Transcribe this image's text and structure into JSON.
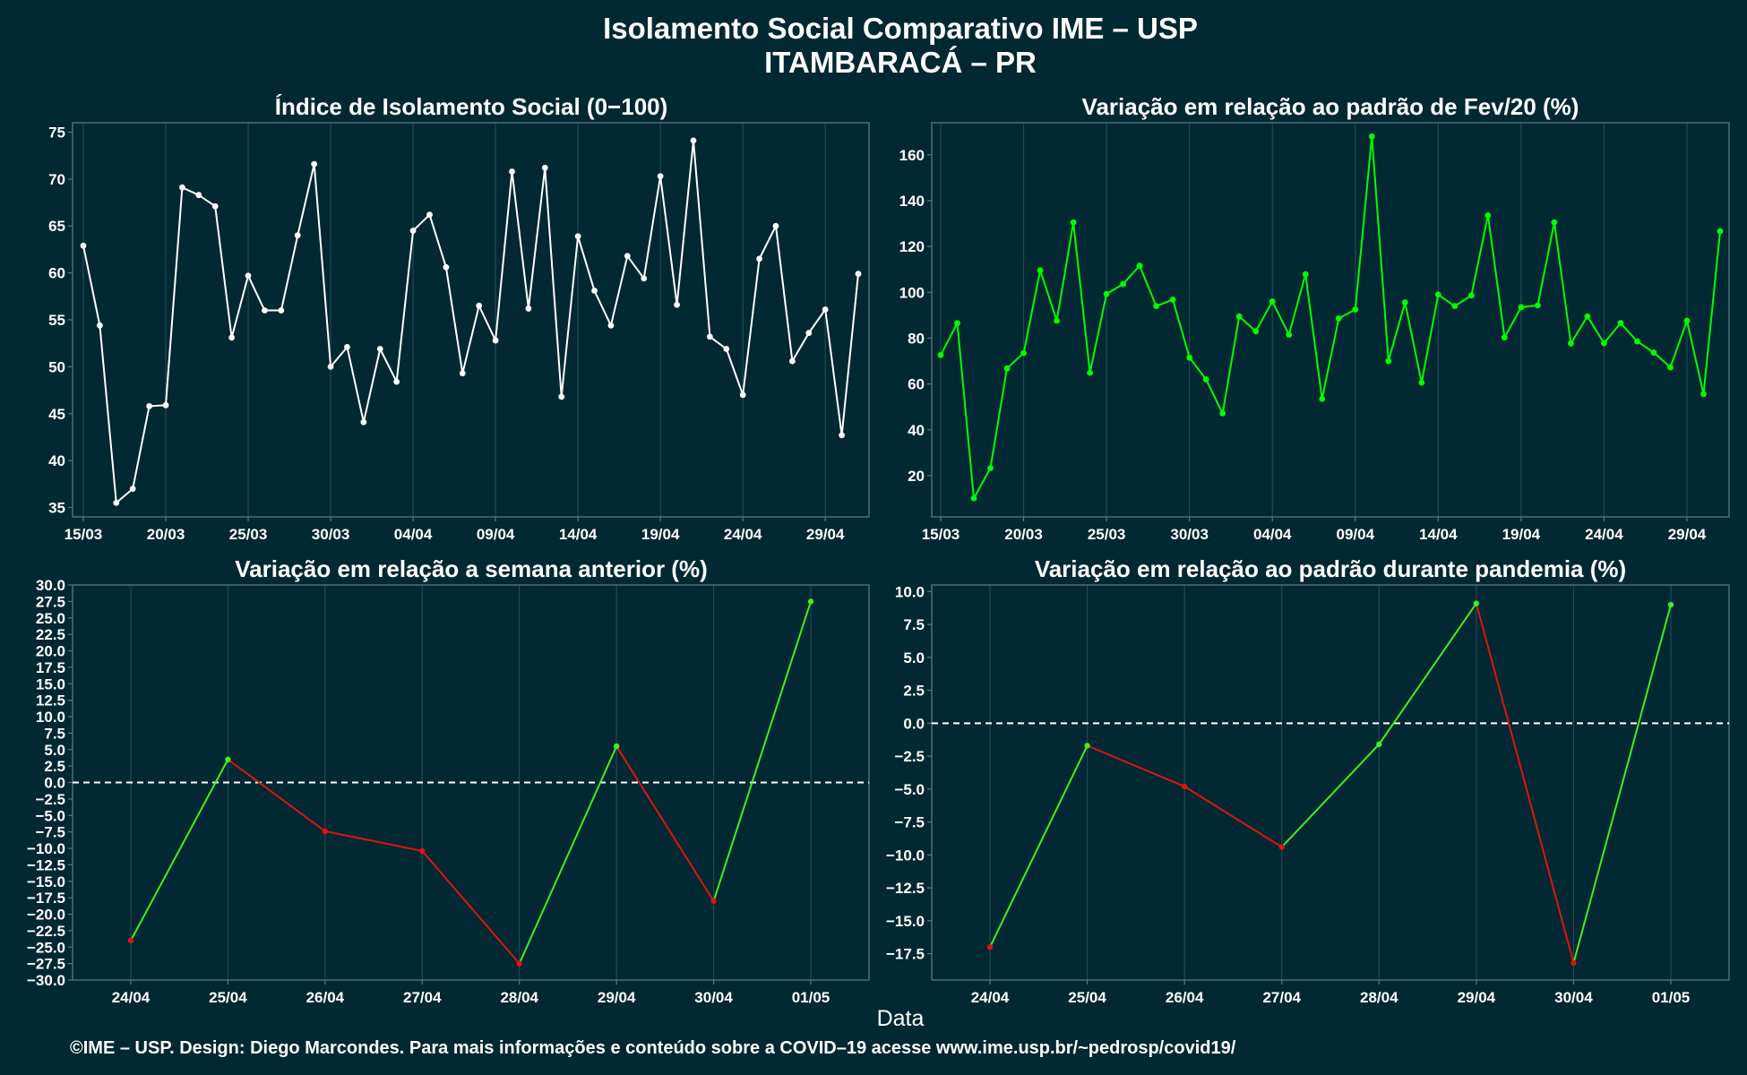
{
  "header": {
    "title_line1": "Isolamento Social Comparativo IME – USP",
    "title_line2": "ITAMBARACÁ – PR"
  },
  "xaxis_label": "Data",
  "caption": "©IME – USP. Design: Diego Marcondes. Para mais informações e conteúdo sobre a COVID–19 acesse www.ime.usp.br/~pedrosp/covid19/",
  "colors": {
    "background": "#022833",
    "panel_border": "#5a7880",
    "grid": "#1f4a52",
    "index_line": "#ffffff",
    "fev_line": "#00ff00",
    "positive": "#3ef01f",
    "negative": "#e0140f",
    "zero_line": "#ffffff"
  },
  "chart_data": [
    {
      "id": "indice",
      "type": "line",
      "title": "Índice de Isolamento Social (0−100)",
      "x_dates": [
        "15/03",
        "16/03",
        "17/03",
        "18/03",
        "19/03",
        "20/03",
        "21/03",
        "22/03",
        "23/03",
        "24/03",
        "25/03",
        "26/03",
        "27/03",
        "28/03",
        "29/03",
        "30/03",
        "31/03",
        "01/04",
        "02/04",
        "03/04",
        "04/04",
        "05/04",
        "06/04",
        "07/04",
        "08/04",
        "09/04",
        "10/04",
        "11/04",
        "12/04",
        "13/04",
        "14/04",
        "15/04",
        "16/04",
        "17/04",
        "18/04",
        "19/04",
        "20/04",
        "21/04",
        "22/04",
        "23/04",
        "24/04",
        "25/04",
        "26/04",
        "27/04",
        "28/04",
        "29/04",
        "30/04",
        "01/05"
      ],
      "values": [
        62.9,
        54.4,
        35.5,
        37.0,
        45.8,
        45.9,
        69.1,
        68.3,
        67.1,
        53.1,
        59.7,
        56.0,
        56.0,
        64.0,
        71.6,
        50.0,
        52.1,
        44.1,
        51.9,
        48.4,
        64.5,
        66.2,
        60.6,
        49.3,
        56.5,
        52.8,
        70.8,
        56.2,
        71.2,
        46.8,
        63.9,
        58.1,
        54.4,
        61.8,
        59.4,
        70.3,
        56.6,
        74.1,
        53.2,
        51.9,
        47.0,
        61.5,
        65.0,
        50.6,
        53.6,
        56.1,
        42.7,
        59.9
      ],
      "line_color": "#ffffff",
      "ylim": [
        34,
        76
      ],
      "yticks": [
        35,
        40,
        45,
        50,
        55,
        60,
        65,
        70,
        75
      ],
      "ytick_labels": [
        "35",
        "40",
        "45",
        "50",
        "55",
        "60",
        "65",
        "70",
        "75"
      ],
      "xtick_labels": [
        "15/03",
        "20/03",
        "25/03",
        "30/03",
        "04/04",
        "09/04",
        "14/04",
        "19/04",
        "24/04",
        "29/04"
      ],
      "xtick_positions": [
        0,
        5,
        10,
        15,
        20,
        25,
        30,
        35,
        40,
        45
      ]
    },
    {
      "id": "fev",
      "type": "line",
      "title": "Variação em relação ao padrão de Fev/20 (%)",
      "x_dates": [
        "15/03",
        "16/03",
        "17/03",
        "18/03",
        "19/03",
        "20/03",
        "21/03",
        "22/03",
        "23/03",
        "24/03",
        "25/03",
        "26/03",
        "27/03",
        "28/03",
        "29/03",
        "30/03",
        "31/03",
        "01/04",
        "02/04",
        "03/04",
        "04/04",
        "05/04",
        "06/04",
        "07/04",
        "08/04",
        "09/04",
        "10/04",
        "11/04",
        "12/04",
        "13/04",
        "14/04",
        "15/04",
        "16/04",
        "17/04",
        "18/04",
        "19/04",
        "20/04",
        "21/04",
        "22/04",
        "23/04",
        "24/04",
        "25/04",
        "26/04",
        "27/04",
        "28/04",
        "29/04",
        "30/04",
        "01/05"
      ],
      "values": [
        72.6,
        86.5,
        10.1,
        23.3,
        66.8,
        73.5,
        109.6,
        87.6,
        130.5,
        64.9,
        99.3,
        103.6,
        111.6,
        94.0,
        96.8,
        71.5,
        62.0,
        47.2,
        89.5,
        83.0,
        96.0,
        81.5,
        107.9,
        53.5,
        88.6,
        92.5,
        168.0,
        70.0,
        95.6,
        60.6,
        99.0,
        94.0,
        98.6,
        133.6,
        80.3,
        93.5,
        94.3,
        130.5,
        77.7,
        89.5,
        77.8,
        86.6,
        78.6,
        73.7,
        67.3,
        87.6,
        55.6,
        126.7
      ],
      "line_color": "#00ff00",
      "ylim": [
        2,
        174
      ],
      "yticks": [
        20,
        40,
        60,
        80,
        100,
        120,
        140,
        160
      ],
      "ytick_labels": [
        "20",
        "40",
        "60",
        "80",
        "100",
        "120",
        "140",
        "160"
      ],
      "xtick_labels": [
        "15/03",
        "20/03",
        "25/03",
        "30/03",
        "04/04",
        "09/04",
        "14/04",
        "19/04",
        "24/04",
        "29/04"
      ],
      "xtick_positions": [
        0,
        5,
        10,
        15,
        20,
        25,
        30,
        35,
        40,
        45
      ]
    },
    {
      "id": "semana",
      "type": "line",
      "title": "Variação em relação a semana anterior (%)",
      "categories": [
        "24/04",
        "25/04",
        "26/04",
        "27/04",
        "28/04",
        "29/04",
        "30/04",
        "01/05"
      ],
      "values": [
        -24.0,
        3.5,
        -7.4,
        -10.4,
        -27.5,
        5.5,
        -18.0,
        27.5
      ],
      "ylim": [
        -30,
        30
      ],
      "yticks": [
        -30,
        -27.5,
        -25,
        -22.5,
        -20,
        -17.5,
        -15,
        -12.5,
        -10,
        -7.5,
        -5,
        -2.5,
        0,
        2.5,
        5,
        7.5,
        10,
        12.5,
        15,
        17.5,
        20,
        22.5,
        25,
        27.5,
        30
      ],
      "ytick_labels": [
        "−30.0",
        "−27.5",
        "−25.0",
        "−22.5",
        "−20.0",
        "−17.5",
        "−15.0",
        "−12.5",
        "−10.0",
        "−7.5",
        "−5.0",
        "−2.5",
        "0.0",
        "2.5",
        "5.0",
        "7.5",
        "10.0",
        "12.5",
        "15.0",
        "17.5",
        "20.0",
        "22.5",
        "25.0",
        "27.5",
        "30.0"
      ],
      "reference_line": 0
    },
    {
      "id": "pandemia",
      "type": "line",
      "title": "Variação em relação ao padrão durante pandemia (%)",
      "categories": [
        "24/04",
        "25/04",
        "26/04",
        "27/04",
        "28/04",
        "29/04",
        "30/04",
        "01/05"
      ],
      "values": [
        -17.0,
        -1.7,
        -4.8,
        -9.4,
        -1.6,
        9.1,
        -18.2,
        9.0
      ],
      "ylim": [
        -19.5,
        10.5
      ],
      "yticks": [
        -17.5,
        -15,
        -12.5,
        -10,
        -7.5,
        -5,
        -2.5,
        0,
        2.5,
        5,
        7.5,
        10
      ],
      "ytick_labels": [
        "−17.5",
        "−15.0",
        "−12.5",
        "−10.0",
        "−7.5",
        "−5.0",
        "−2.5",
        "0.0",
        "2.5",
        "5.0",
        "7.5",
        "10.0"
      ],
      "reference_line": 0
    }
  ]
}
